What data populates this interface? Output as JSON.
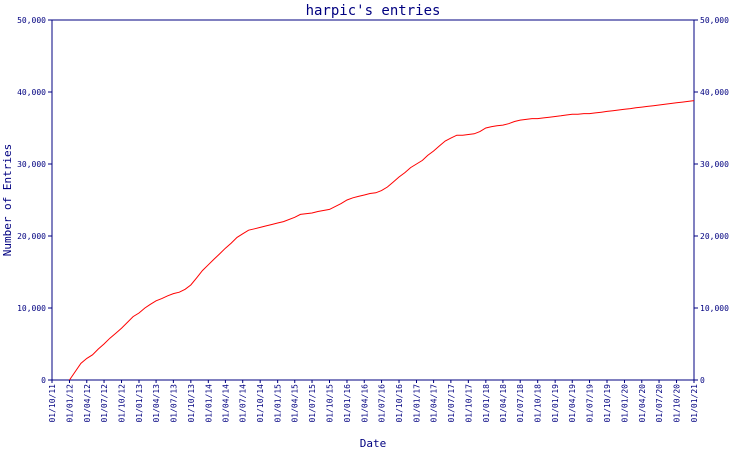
{
  "chart_data": {
    "type": "line",
    "title": "harpic's entries",
    "xlabel": "Date",
    "ylabel": "Number of Entries",
    "ylim": [
      0,
      50000
    ],
    "y_ticks": [
      0,
      10000,
      20000,
      30000,
      40000,
      50000
    ],
    "y_tick_labels": [
      "0",
      "10,000",
      "20,000",
      "30,000",
      "40,000",
      "50,000"
    ],
    "x_tick_labels": [
      "01/10/11",
      "01/01/12",
      "01/04/12",
      "01/07/12",
      "01/10/12",
      "01/01/13",
      "01/04/13",
      "01/07/13",
      "01/10/13",
      "01/01/14",
      "01/04/14",
      "01/07/14",
      "01/10/14",
      "01/01/15",
      "01/04/15",
      "01/07/15",
      "01/10/15",
      "01/01/16",
      "01/04/16",
      "01/07/16",
      "01/10/16",
      "01/01/17",
      "01/04/17",
      "01/07/17",
      "01/10/17",
      "01/01/18",
      "01/04/18",
      "01/07/18",
      "01/10/18",
      "01/01/19",
      "01/04/19",
      "01/07/19",
      "01/10/19",
      "01/01/20",
      "01/04/20",
      "01/07/20",
      "01/10/20",
      "01/01/21"
    ],
    "grid": false,
    "colors": {
      "axis": "#000080",
      "series": "#ff0000"
    },
    "series": [
      {
        "x": [
          "2012-01-01",
          "2012-02-01",
          "2012-03-01",
          "2012-04-01",
          "2012-05-01",
          "2012-06-01",
          "2012-07-01",
          "2012-08-01",
          "2012-09-01",
          "2012-10-01",
          "2012-11-01",
          "2012-12-01",
          "2013-01-01",
          "2013-02-01",
          "2013-03-01",
          "2013-04-01",
          "2013-05-01",
          "2013-06-01",
          "2013-07-01",
          "2013-08-01",
          "2013-09-01",
          "2013-10-01",
          "2013-11-01",
          "2013-12-01",
          "2014-01-01",
          "2014-02-01",
          "2014-03-01",
          "2014-04-01",
          "2014-05-01",
          "2014-06-01",
          "2014-07-01",
          "2014-08-01",
          "2014-09-01",
          "2014-10-01",
          "2014-11-01",
          "2014-12-01",
          "2015-01-01",
          "2015-02-01",
          "2015-04-01",
          "2015-05-01",
          "2015-07-01",
          "2015-08-01",
          "2015-10-01",
          "2015-12-01",
          "2016-01-01",
          "2016-02-01",
          "2016-03-01",
          "2016-04-01",
          "2016-05-01",
          "2016-06-01",
          "2016-07-01",
          "2016-08-01",
          "2016-09-01",
          "2016-10-01",
          "2016-11-01",
          "2016-12-01",
          "2017-01-01",
          "2017-02-01",
          "2017-03-01",
          "2017-04-01",
          "2017-05-01",
          "2017-06-01",
          "2017-07-01",
          "2017-08-01",
          "2017-09-01",
          "2017-10-01",
          "2017-11-01",
          "2017-12-01",
          "2018-01-01",
          "2018-02-01",
          "2018-03-01",
          "2018-04-01",
          "2018-05-01",
          "2018-06-01",
          "2018-07-01",
          "2018-08-01",
          "2018-09-01",
          "2018-10-01",
          "2018-11-01",
          "2018-12-01",
          "2019-01-01",
          "2019-02-01",
          "2019-03-01",
          "2019-04-01",
          "2019-05-01",
          "2019-06-01",
          "2019-07-01",
          "2019-08-01",
          "2019-09-01",
          "2019-10-01",
          "2019-11-01",
          "2019-12-01",
          "2020-01-01",
          "2020-02-01",
          "2020-03-01",
          "2020-04-01",
          "2020-05-01",
          "2020-06-01",
          "2020-07-01",
          "2020-08-01",
          "2020-09-01",
          "2020-10-01",
          "2020-11-01",
          "2020-12-01",
          "2021-01-01"
        ],
        "y": [
          0,
          1200,
          2300,
          3000,
          3500,
          4300,
          5000,
          5800,
          6500,
          7200,
          8000,
          8800,
          9300,
          10000,
          10500,
          11000,
          11300,
          11700,
          12000,
          12200,
          12600,
          13200,
          14200,
          15200,
          16000,
          16800,
          17500,
          18300,
          19000,
          19800,
          20300,
          20800,
          21000,
          21200,
          21400,
          21600,
          21800,
          22000,
          22600,
          23000,
          23200,
          23400,
          23700,
          24500,
          25000,
          25300,
          25500,
          25700,
          25900,
          26000,
          26300,
          26800,
          27500,
          28200,
          28800,
          29500,
          30000,
          30500,
          31200,
          31800,
          32500,
          33200,
          33600,
          34000,
          34000,
          34100,
          34200,
          34500,
          35000,
          35200,
          35300,
          35400,
          35600,
          35900,
          36100,
          36200,
          36300,
          36300,
          36400,
          36500,
          36600,
          36700,
          36800,
          36900,
          36900,
          37000,
          37000,
          37100,
          37200,
          37300,
          37400,
          37500,
          37600,
          37700,
          37800,
          37900,
          38000,
          38100,
          38200,
          38300,
          38400,
          38500,
          38600,
          38700,
          38800
        ]
      }
    ]
  }
}
